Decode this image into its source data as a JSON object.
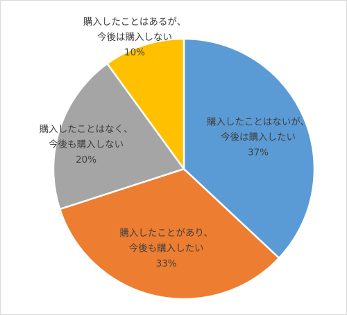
{
  "chart_data": {
    "type": "pie",
    "title": "",
    "start_angle_deg": 0,
    "direction": "clockwise",
    "legend": "none",
    "slices": [
      {
        "label_lines": [
          "購入したことはないが、",
          "今後は購入したい"
        ],
        "value": 37,
        "value_label": "37%",
        "color": "#5b9bd5"
      },
      {
        "label_lines": [
          "購入したことがあり、",
          "今後も購入したい"
        ],
        "value": 33,
        "value_label": "33%",
        "color": "#ed7d31"
      },
      {
        "label_lines": [
          "購入したことはなく、",
          "今後も購入しない"
        ],
        "value": 20,
        "value_label": "20%",
        "color": "#a5a5a5"
      },
      {
        "label_lines": [
          "購入したことはあるが、",
          "今後は購入しない"
        ],
        "value": 10,
        "value_label": "10%",
        "color": "#ffc000"
      }
    ]
  }
}
